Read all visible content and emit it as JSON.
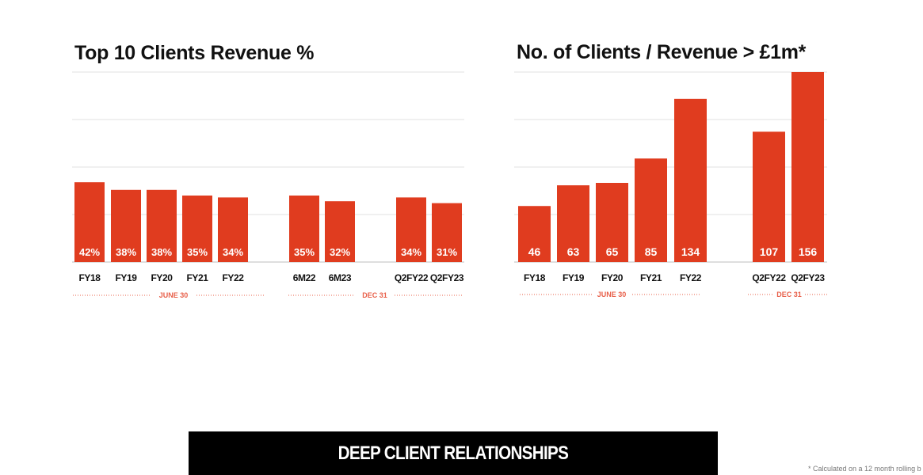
{
  "chart_data": [
    {
      "type": "bar",
      "title": "Top 10 Clients Revenue %",
      "categories": [
        "FY18",
        "FY19",
        "FY20",
        "FY21",
        "FY22",
        "6M22",
        "6M23",
        "Q2FY22",
        "Q2FY23"
      ],
      "values": [
        42,
        38,
        38,
        35,
        34,
        35,
        32,
        34,
        31
      ],
      "value_labels": [
        "42%",
        "38%",
        "38%",
        "35%",
        "34%",
        "35%",
        "32%",
        "34%",
        "31%"
      ],
      "ylim": [
        0,
        100
      ],
      "grid": true,
      "groups": [
        {
          "label": "JUNE 30",
          "categories": [
            "FY18",
            "FY19",
            "FY20",
            "FY21",
            "FY22"
          ]
        },
        {
          "label": "DEC 31",
          "categories": [
            "6M22",
            "6M23",
            "Q2FY22",
            "Q2FY23"
          ]
        }
      ],
      "bar_color": "#e03c1f"
    },
    {
      "type": "bar",
      "title": "No. of Clients / Revenue > £1m*",
      "categories": [
        "FY18",
        "FY19",
        "FY20",
        "FY21",
        "FY22",
        "Q2FY22",
        "Q2FY23"
      ],
      "values": [
        46,
        63,
        65,
        85,
        134,
        107,
        156
      ],
      "value_labels": [
        "46",
        "63",
        "65",
        "85",
        "134",
        "107",
        "156"
      ],
      "ylim": [
        0,
        156
      ],
      "grid": true,
      "groups": [
        {
          "label": "JUNE 30",
          "categories": [
            "FY18",
            "FY19",
            "FY20",
            "FY21",
            "FY22"
          ]
        },
        {
          "label": "DEC 31",
          "categories": [
            "Q2FY22",
            "Q2FY23"
          ]
        }
      ],
      "bar_color": "#e03c1f"
    }
  ],
  "banner": {
    "text": "DEEP CLIENT RELATIONSHIPS"
  },
  "footnote": "* Calculated on a 12 month rolling b"
}
